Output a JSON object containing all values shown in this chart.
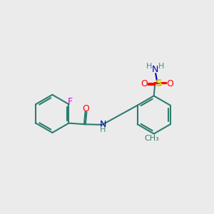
{
  "bg_color": "#ebebeb",
  "bond_color": "#2d7d6f",
  "bond_lw": 1.5,
  "colors": {
    "F": "#e000e0",
    "O": "#ff0000",
    "N": "#0000cc",
    "S": "#cccc00",
    "H": "#4a8a8a",
    "C": "#2d7d6f"
  },
  "font_size": 9,
  "font_size_small": 8
}
